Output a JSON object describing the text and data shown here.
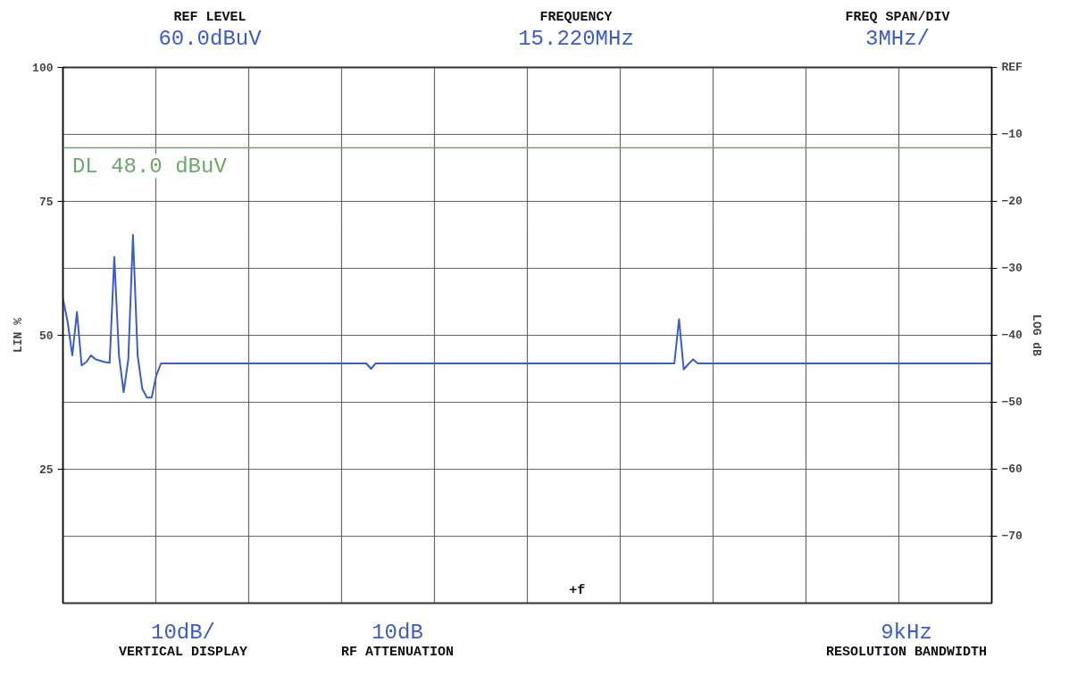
{
  "chart_data": {
    "type": "line",
    "ylabel": "LIN %",
    "y2label": "LOG dB",
    "categories": [
      null,
      null,
      null,
      null,
      null,
      null,
      null,
      null,
      null,
      null,
      null,
      null,
      null,
      null,
      null,
      null,
      null,
      null,
      null,
      null,
      null,
      null,
      null,
      null,
      null,
      null,
      null,
      null,
      null,
      null,
      null,
      null,
      null,
      null,
      null,
      null,
      null,
      null,
      null,
      null,
      null,
      null,
      null,
      null,
      null,
      null,
      null,
      null,
      null,
      null,
      null,
      null,
      null,
      null,
      null,
      null,
      null,
      null,
      null,
      null,
      null,
      null,
      null,
      null,
      null,
      null,
      null,
      null,
      null,
      null,
      null,
      null,
      null,
      null,
      null,
      null,
      null,
      null,
      null,
      null,
      null,
      null,
      null,
      null,
      null,
      null,
      null,
      null,
      null,
      null,
      null,
      null,
      null,
      null,
      null,
      null,
      null,
      null,
      null,
      null,
      null,
      null,
      null,
      null,
      null,
      null,
      null,
      null,
      null,
      null,
      null,
      null,
      null,
      null,
      null,
      null,
      null,
      null,
      null,
      null,
      null,
      null,
      null,
      null,
      null,
      null,
      null,
      null,
      null,
      null,
      null,
      null,
      null,
      null,
      null,
      null,
      null,
      null,
      null,
      null,
      null,
      null,
      null,
      null,
      null,
      null,
      null,
      null,
      null,
      null,
      null,
      null,
      null,
      null,
      null,
      null,
      null,
      null,
      null,
      null,
      null,
      null,
      null,
      null,
      null,
      null,
      null,
      null,
      null,
      null,
      null,
      null,
      null,
      null,
      null,
      null,
      null,
      null,
      null,
      null,
      null,
      null,
      null,
      null,
      null,
      null,
      null,
      null,
      null,
      null,
      null,
      null,
      null,
      null,
      null,
      null,
      null,
      null,
      null,
      null
    ],
    "series": [
      {
        "color": "#3b5bd0",
        "axis": "y2",
        "values": [
          -34.5,
          -38.0,
          -43.0,
          -36.5,
          -44.5,
          -44.0,
          -43.0,
          -43.6,
          -43.8,
          -44.0,
          -44.1,
          -28.3,
          -43.0,
          -48.5,
          -43.6,
          -25.0,
          -43.0,
          -48.0,
          -49.3,
          -49.3,
          -46.0,
          -44.2,
          -44.2,
          -44.2,
          -44.2,
          -44.2,
          -44.2,
          -44.2,
          -44.2,
          -44.2,
          -44.2,
          -44.2,
          -44.2,
          -44.2,
          -44.2,
          -44.2,
          -44.2,
          -44.2,
          -44.2,
          -44.2,
          -44.2,
          -44.2,
          -44.2,
          -44.2,
          -44.2,
          -44.2,
          -44.2,
          -44.2,
          -44.2,
          -44.2,
          -44.2,
          -44.2,
          -44.2,
          -44.2,
          -44.2,
          -44.2,
          -44.2,
          -44.2,
          -44.2,
          -44.2,
          -44.2,
          -44.2,
          -44.2,
          -44.2,
          -44.2,
          -44.2,
          -45.0,
          -44.2,
          -44.2,
          -44.2,
          -44.2,
          -44.2,
          -44.2,
          -44.2,
          -44.2,
          -44.2,
          -44.2,
          -44.2,
          -44.2,
          -44.2,
          -44.2,
          -44.2,
          -44.2,
          -44.2,
          -44.2,
          -44.2,
          -44.2,
          -44.2,
          -44.2,
          -44.2,
          -44.2,
          -44.2,
          -44.2,
          -44.2,
          -44.2,
          -44.2,
          -44.2,
          -44.2,
          -44.2,
          -44.2,
          -44.2,
          -44.2,
          -44.2,
          -44.2,
          -44.2,
          -44.2,
          -44.2,
          -44.2,
          -44.2,
          -44.2,
          -44.2,
          -44.2,
          -44.2,
          -44.2,
          -44.2,
          -44.2,
          -44.2,
          -44.2,
          -44.2,
          -44.2,
          -44.2,
          -44.2,
          -44.2,
          -44.2,
          -44.2,
          -44.2,
          -44.2,
          -44.2,
          -44.2,
          -44.2,
          -44.2,
          -44.2,
          -37.6,
          -45.1,
          -44.3,
          -43.6,
          -44.2,
          -44.2,
          -44.2,
          -44.2,
          -44.2,
          -44.2,
          -44.2,
          -44.2,
          -44.2,
          -44.2,
          -44.2,
          -44.2,
          -44.2,
          -44.2,
          -44.2,
          -44.2,
          -44.2,
          -44.2,
          -44.2,
          -44.2,
          -44.2,
          -44.2,
          -44.2,
          -44.2,
          -44.2,
          -44.2,
          -44.2,
          -44.2,
          -44.2,
          -44.2,
          -44.2,
          -44.2,
          -44.2,
          -44.2,
          -44.2,
          -44.2,
          -44.2,
          -44.2,
          -44.2,
          -44.2,
          -44.2,
          -44.2,
          -44.2,
          -44.2,
          -44.2,
          -44.2,
          -44.2,
          -44.2,
          -44.2,
          -44.2,
          -44.2,
          -44.2,
          -44.2,
          -44.2,
          -44.2,
          -44.2,
          -44.2,
          -44.2,
          -44.2,
          -44.2,
          -44.2,
          -44.2,
          -44.2,
          -44.2
        ]
      }
    ],
    "ylim": [
      0,
      100
    ],
    "yticks": [
      25,
      50,
      75,
      100
    ],
    "y2lim": [
      -80,
      0
    ],
    "y2ticks": [
      {
        "value": 0,
        "label": "REF"
      },
      -10,
      -20,
      -30,
      -40,
      -50,
      -60,
      -70
    ],
    "ref_lines": [
      {
        "axis": "y2",
        "value": -12,
        "label": "DL 48.0 dBuV",
        "color": "#6aa86a"
      }
    ],
    "grid": true,
    "annotations": [
      "REF LEVEL",
      "60.0dBuV",
      "FREQUENCY",
      "15.220MHz",
      "FREQ SPAN/DIV",
      "3MHz/",
      "10dB/",
      "VERTICAL DISPLAY",
      "10dB",
      "RF ATTENUATION",
      "9kHz",
      "RESOLUTION BANDWIDTH",
      "+f"
    ]
  }
}
